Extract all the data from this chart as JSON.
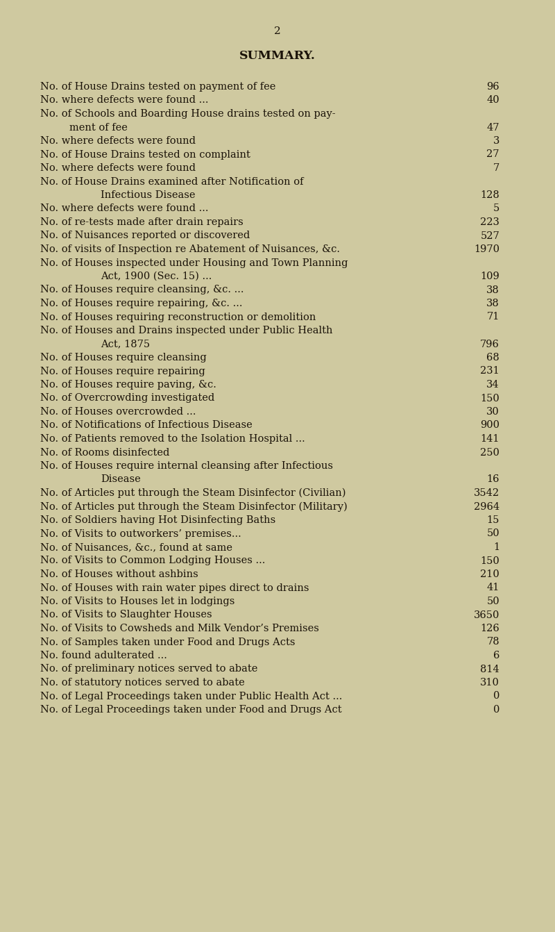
{
  "page_number": "2",
  "title": "SUMMARY.",
  "background_color": "#cfc9a0",
  "text_color": "#1a1208",
  "title_fontsize": 12.5,
  "body_fontsize": 10.5,
  "page_num_fontsize": 11,
  "figsize": [
    8.0,
    13.42
  ],
  "dpi": 100,
  "entries": [
    {
      "text": "No. of House Drains tested on payment of fee",
      "tail": "   ...          ...",
      "value": "96",
      "indent": 0
    },
    {
      "text": "No. where defects were found ...",
      "tail": "   ...      ...     ...     ...",
      "value": "40",
      "indent": 0
    },
    {
      "text": "No. of Schools and Boarding House drains tested on pay-",
      "tail": "",
      "value": "",
      "indent": 0
    },
    {
      "text": "ment of fee",
      "tail": "   ...     ...      ...      ...     ...     ...",
      "value": "47",
      "indent": 1
    },
    {
      "text": "No. where defects were found",
      "tail": "          ...      ...     ...     ...",
      "value": "3",
      "indent": 0
    },
    {
      "text": "No. of House Drains tested on complaint",
      "tail": "   ...      ...     ...",
      "value": "27",
      "indent": 0
    },
    {
      "text": "No. where defects were found",
      "tail": "          ...      ...     ...     ...",
      "value": "7",
      "indent": 0
    },
    {
      "text": "No. of House Drains examined after Notification of",
      "tail": "",
      "value": "",
      "indent": 0
    },
    {
      "text": "Infectious Disease",
      "tail": "   ...      ...      ...      ...      ...",
      "value": "128",
      "indent": 2
    },
    {
      "text": "No. where defects were found ...",
      "tail": "   ...      ...      ...     ...",
      "value": "5",
      "indent": 0
    },
    {
      "text": "No. of re-tests made after drain repairs",
      "tail": "   ...      ...     ...",
      "value": "223",
      "indent": 0
    },
    {
      "text": "No. of Nuisances reported or discovered",
      "tail": "   ...      ...     ...",
      "value": "527",
      "indent": 0
    },
    {
      "text": "No. of visits of Inspection re Abatement of Nuisances, &c.",
      "tail": "",
      "value": "1970",
      "indent": 0
    },
    {
      "text": "No. of Houses inspected under Housing and Town Planning",
      "tail": "",
      "value": "",
      "indent": 0
    },
    {
      "text": "Act, 1900 (Sec. 15) ...",
      "tail": "   ...      ...     ...     ...",
      "value": "109",
      "indent": 2
    },
    {
      "text": "No. of Houses require cleansing, &c. ...",
      "tail": "   ...      ...     ...",
      "value": "38",
      "indent": 0
    },
    {
      "text": "No. of Houses require repairing, &c. ...",
      "tail": "   ...      ...     ...",
      "value": "38",
      "indent": 0
    },
    {
      "text": "No. of Houses requiring reconstruction or demolition",
      "tail": "   ...",
      "value": "71",
      "indent": 0
    },
    {
      "text": "No. of Houses and Drains inspected under Public Health",
      "tail": "",
      "value": "",
      "indent": 0
    },
    {
      "text": "Act, 1875",
      "tail": "   ...      ...      ...      ...      ...     ...",
      "value": "796",
      "indent": 2
    },
    {
      "text": "No. of Houses require cleansing",
      "tail": "   ...      ...      ...     ...",
      "value": "68",
      "indent": 0
    },
    {
      "text": "No. of Houses require repairing",
      "tail": "   ...      ...      ...     ...",
      "value": "231",
      "indent": 0
    },
    {
      "text": "No. of Houses require paving, &c.",
      "tail": "   ...      ...      ...     ...",
      "value": "34",
      "indent": 0
    },
    {
      "text": "No. of Overcrowding investigated",
      "tail": "   ...      ...      ...     ...",
      "value": "150",
      "indent": 0
    },
    {
      "text": "No. of Houses overcrowded ...",
      "tail": "   ...      ...      ...     ...",
      "value": "30",
      "indent": 0
    },
    {
      "text": "No. of Notifications of Infectious Disease",
      "tail": "   ...      ...     ...",
      "value": "900",
      "indent": 0
    },
    {
      "text": "No. of Patients removed to the Isolation Hospital ...",
      "tail": "   ...",
      "value": "141",
      "indent": 0
    },
    {
      "text": "No. of Rooms disinfected",
      "tail": "   ...      ...      ...      ...·...",
      "value": "250",
      "indent": 0
    },
    {
      "text": "No. of Houses require internal cleansing after Infectious",
      "tail": "",
      "value": "",
      "indent": 0
    },
    {
      "text": "Disease",
      "tail": "   ...      ...      ...      ...      ...",
      "value": "16",
      "indent": 2
    },
    {
      "text": "No. of Articles put through the Steam Disinfector (Civilian)",
      "tail": "",
      "value": "3542",
      "indent": 0
    },
    {
      "text": "No. of Articles put through the Steam Disinfector (Military)",
      "tail": "",
      "value": "2964",
      "indent": 0
    },
    {
      "text": "No. of Soldiers having Hot Disinfecting Baths",
      "tail": "   ...     ...",
      "value": "15",
      "indent": 0
    },
    {
      "text": "No. of Visits to outworkers’ premises...",
      "tail": "   ...      ...     ...",
      "value": "50",
      "indent": 0
    },
    {
      "text": "No. of Nuisances, &c., found at same",
      "tail": "   ...      ...      ...",
      "value": "1",
      "indent": 0
    },
    {
      "text": "No. of Visits to Common Lodging Houses ...",
      "tail": "   ...      ...",
      "value": "150",
      "indent": 0
    },
    {
      "text": "No. of Houses without ashbins",
      "tail": "   ...      ...      ...     ...",
      "value": "210",
      "indent": 0
    },
    {
      "text": "No. of Houses with rain water pipes direct to drains",
      "tail": "   ...",
      "value": "41",
      "indent": 0
    },
    {
      "text": "No. of Visits to Houses let in lodgings",
      "tail": "   ...      ...     ...",
      "value": "50",
      "indent": 0
    },
    {
      "text": "No. of Visits to Slaughter Houses",
      "tail": "   ...      ...      ...",
      "value": "3650",
      "indent": 0
    },
    {
      "text": "No. of Visits to Cowsheds and Milk Vendor’s Premises",
      "tail": "   ...",
      "value": "126",
      "indent": 0
    },
    {
      "text": "No. of Samples taken under Food and Drugs Acts",
      "tail": "   ...",
      "value": "78",
      "indent": 0
    },
    {
      "text": "No. found adulterated ...",
      "tail": "   ...      ...      ...      ...",
      "value": "6",
      "indent": 0
    },
    {
      "text": "No. of preliminary notices served to abate",
      "tail": "   ...      ...",
      "value": "814",
      "indent": 0
    },
    {
      "text": "No. of statutory notices served to abate",
      "tail": "   ...      ...",
      "value": "310",
      "indent": 0
    },
    {
      "text": "No. of Legal Proceedings taken under Public Health Act ...",
      "tail": "",
      "value": "0",
      "indent": 0
    },
    {
      "text": "No. of Legal Proceedings taken under Food and Drugs Act",
      "tail": "",
      "value": "0",
      "indent": 0
    }
  ]
}
